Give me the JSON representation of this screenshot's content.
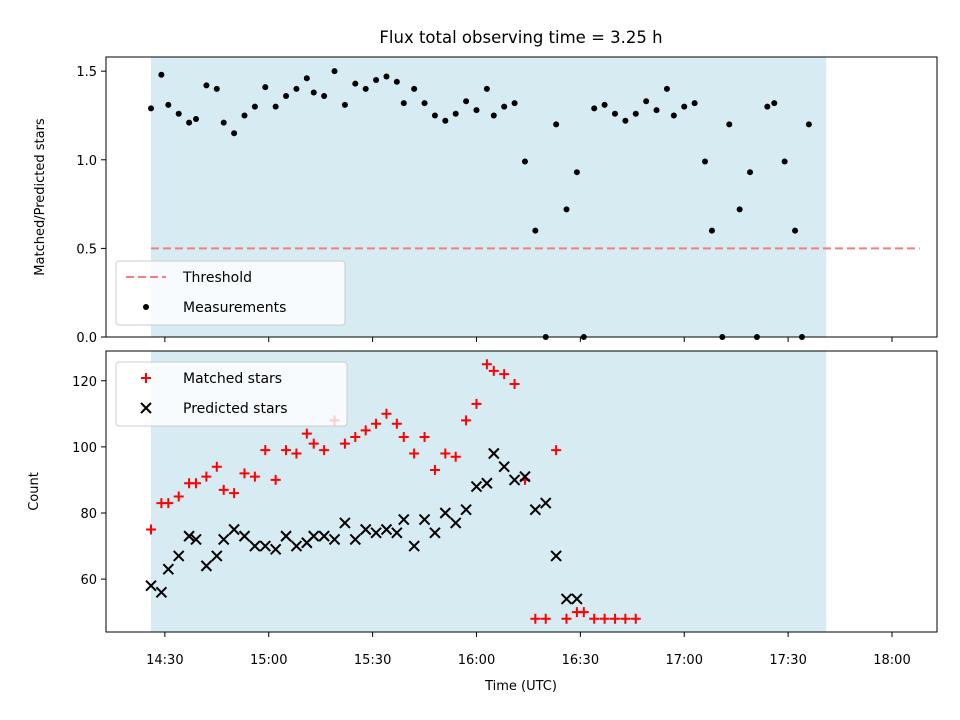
{
  "figure": {
    "title": "Flux total observing time = 3.25 h",
    "xlabel": "Time (UTC)"
  },
  "chart_data": [
    {
      "type": "scatter",
      "ylabel": "Matched/Predicted stars",
      "ylim": [
        0,
        1.58
      ],
      "yticks": [
        "0.0",
        "0.5",
        "1.0",
        "1.5"
      ],
      "xlim": [
        "14:13",
        "18:13"
      ],
      "xticks": [
        "14:30",
        "15:00",
        "15:30",
        "16:00",
        "16:30",
        "17:00",
        "17:30",
        "18:00"
      ],
      "shade": {
        "from": "14:26",
        "to": "17:41",
        "color": "#add8e6"
      },
      "threshold": {
        "name": "Threshold",
        "value": 0.5,
        "from": "14:26",
        "to": "18:08",
        "color": "#f08080"
      },
      "legend": {
        "position": "lower-left",
        "entries": [
          "Threshold",
          "Measurements"
        ]
      },
      "series": [
        {
          "name": "Measurements",
          "marker": "dot",
          "color": "#000000",
          "x": [
            "14:26",
            "14:29",
            "14:31",
            "14:34",
            "14:37",
            "14:39",
            "14:42",
            "14:45",
            "14:47",
            "14:50",
            "14:53",
            "14:56",
            "14:59",
            "15:02",
            "15:05",
            "15:08",
            "15:11",
            "15:13",
            "15:16",
            "15:19",
            "15:22",
            "15:25",
            "15:28",
            "15:31",
            "15:34",
            "15:37",
            "15:39",
            "15:42",
            "15:45",
            "15:48",
            "15:51",
            "15:54",
            "15:57",
            "16:00",
            "16:03",
            "16:05",
            "16:08",
            "16:11",
            "16:14",
            "16:17",
            "16:20",
            "16:23",
            "16:26",
            "16:29",
            "16:31",
            "16:34",
            "16:37",
            "16:40",
            "16:43",
            "16:46",
            "16:49",
            "16:52",
            "16:55",
            "16:57",
            "17:00",
            "17:03",
            "17:06",
            "17:08",
            "17:11",
            "17:13",
            "17:16",
            "17:19",
            "17:21",
            "17:24",
            "17:26",
            "17:29",
            "17:32",
            "17:34",
            "17:36"
          ],
          "y": [
            1.29,
            1.48,
            1.31,
            1.26,
            1.21,
            1.23,
            1.42,
            1.4,
            1.21,
            1.15,
            1.25,
            1.3,
            1.41,
            1.3,
            1.36,
            1.4,
            1.46,
            1.38,
            1.36,
            1.5,
            1.31,
            1.43,
            1.4,
            1.45,
            1.47,
            1.44,
            1.32,
            1.4,
            1.32,
            1.25,
            1.22,
            1.26,
            1.33,
            1.28,
            1.4,
            1.25,
            1.3,
            1.32,
            0.99,
            0.6,
            0.0,
            1.2,
            0.72,
            0.93,
            0.0,
            1.29,
            1.31,
            1.26,
            1.22,
            1.26,
            1.33,
            1.28,
            1.4,
            1.25,
            1.3,
            1.32,
            0.99,
            0.6,
            0.0,
            1.2,
            0.72,
            0.93,
            0.0,
            1.3,
            1.32,
            0.99,
            0.6,
            0.0,
            1.2
          ]
        }
      ]
    },
    {
      "type": "scatter",
      "ylabel": "Count",
      "ylim": [
        44,
        129
      ],
      "yticks": [
        "60",
        "80",
        "100",
        "120"
      ],
      "xlim": [
        "14:13",
        "18:13"
      ],
      "xticks": [
        "14:30",
        "15:00",
        "15:30",
        "16:00",
        "16:30",
        "17:00",
        "17:30",
        "18:00"
      ],
      "shade": {
        "from": "14:26",
        "to": "17:41",
        "color": "#add8e6"
      },
      "legend": {
        "position": "upper-left",
        "entries": [
          "Matched stars",
          "Predicted stars"
        ]
      },
      "series": [
        {
          "name": "Matched stars",
          "marker": "plus",
          "color": "#ff0000",
          "x": [
            "14:26",
            "14:29",
            "14:31",
            "14:34",
            "14:37",
            "14:39",
            "14:42",
            "14:45",
            "14:47",
            "14:50",
            "14:53",
            "14:56",
            "14:59",
            "15:02",
            "15:05",
            "15:08",
            "15:11",
            "15:13",
            "15:16",
            "15:19",
            "15:22",
            "15:25",
            "15:28",
            "15:31",
            "15:34",
            "15:37",
            "15:39",
            "15:42",
            "15:45",
            "15:48",
            "15:51",
            "15:54",
            "15:57",
            "16:00",
            "16:03",
            "16:05",
            "16:08",
            "16:11",
            "16:14",
            "16:17",
            "16:20",
            "16:23",
            "16:26",
            "16:29",
            "16:31",
            "16:34",
            "16:37",
            "16:40",
            "16:43",
            "16:46"
          ],
          "y": [
            75,
            83,
            83,
            85,
            89,
            89,
            91,
            94,
            87,
            86,
            92,
            91,
            99,
            90,
            99,
            98,
            104,
            101,
            99,
            108,
            101,
            103,
            105,
            107,
            110,
            107,
            103,
            98,
            103,
            93,
            98,
            97,
            108,
            113,
            125,
            123,
            122,
            119,
            90,
            48,
            48,
            99,
            48,
            50,
            50,
            48,
            48,
            48,
            48,
            48
          ]
        },
        {
          "name": "Predicted stars",
          "marker": "cross",
          "color": "#000000",
          "x": [
            "14:26",
            "14:29",
            "14:31",
            "14:34",
            "14:37",
            "14:39",
            "14:42",
            "14:45",
            "14:47",
            "14:50",
            "14:53",
            "14:56",
            "14:59",
            "15:02",
            "15:05",
            "15:08",
            "15:11",
            "15:13",
            "15:16",
            "15:19",
            "15:22",
            "15:25",
            "15:28",
            "15:31",
            "15:34",
            "15:37",
            "15:39",
            "15:42",
            "15:45",
            "15:48",
            "15:51",
            "15:54",
            "15:57",
            "16:00",
            "16:03",
            "16:05",
            "16:08",
            "16:11",
            "16:14",
            "16:17",
            "16:20",
            "16:23",
            "16:26",
            "16:29"
          ],
          "y": [
            58,
            56,
            63,
            67,
            73,
            72,
            64,
            67,
            72,
            75,
            73,
            70,
            70,
            69,
            73,
            70,
            71,
            73,
            73,
            72,
            77,
            72,
            75,
            74,
            75,
            74,
            78,
            70,
            78,
            74,
            80,
            77,
            81,
            88,
            89,
            98,
            94,
            90,
            91,
            81,
            83,
            67,
            54,
            54
          ]
        }
      ]
    }
  ]
}
